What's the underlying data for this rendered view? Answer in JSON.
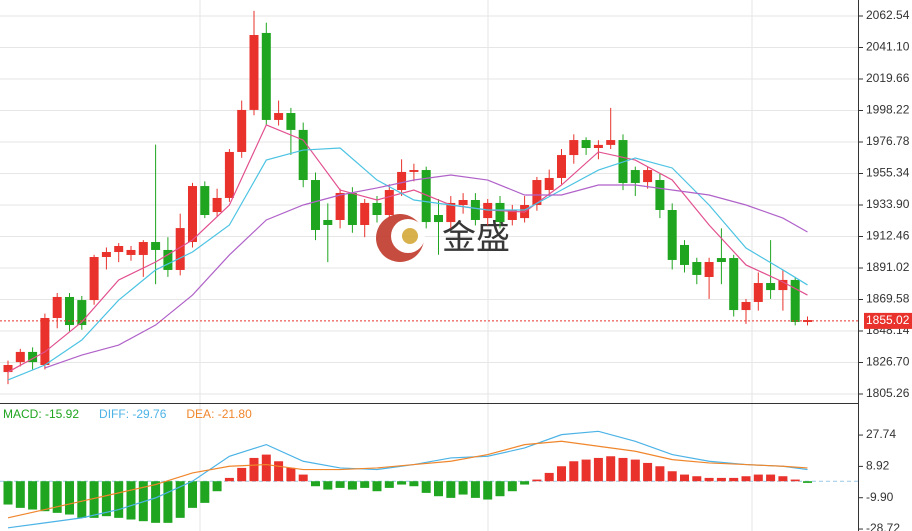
{
  "chart_data": [
    {
      "type": "candlestick",
      "ylim": [
        1799.14,
        2073.43
      ],
      "yticks": [
        2062.54,
        {
          "value": 2041.1,
          "label": "2041.10"
        },
        2019.66,
        1998.22,
        1976.78,
        1955.34,
        {
          "value": 1933.9,
          "label": "1933.90"
        },
        1912.46,
        1891.02,
        1869.58,
        1848.14,
        {
          "value": 1826.7,
          "label": "1826.70"
        },
        1805.26
      ],
      "grid": true,
      "up_color": "#e8322b",
      "down_color": "#1fa51f",
      "open": [
        1820.2,
        1827.0,
        1833.9,
        1825.0,
        1857.0,
        1871.3,
        1869.2,
        1869.2,
        1898.5,
        1901.9,
        1899.9,
        1899.9,
        1908.7,
        1903.3,
        1889.7,
        1908.7,
        1946.8,
        1929.1,
        1938.7,
        1970.0,
        1998.6,
        2051.0,
        1991.8,
        1996.5,
        1985.0,
        1950.9,
        1923.7,
        1923.7,
        1942.1,
        1920.3,
        1935.3,
        1927.1,
        1944.1,
        1956.4,
        1957.7,
        1927.1,
        1922.3,
        1933.9,
        1937.3,
        1925.0,
        1935.3,
        1923.7,
        1925.0,
        1933.9,
        1944.1,
        1952.3,
        1967.9,
        1978.1,
        1972.7,
        1974.8,
        1978.1,
        1957.7,
        1949.5,
        1950.9,
        1930.5,
        1906.7,
        1895.1,
        1884.9,
        1897.8,
        1897.8,
        1862.4,
        1867.9,
        1880.8,
        1876.0,
        1882.9,
        1854.3
      ],
      "high": [
        1828,
        1836,
        1837,
        1860,
        1874,
        1874,
        1872,
        1900,
        1905,
        1908,
        1906,
        1910,
        1975,
        1912,
        1928,
        1949,
        1950,
        1945,
        1972,
        2005,
        2066,
        2058,
        2005,
        2000,
        1990,
        1956,
        1935,
        1945,
        1946,
        1938,
        1940,
        1948,
        1965,
        1962,
        1960,
        1938,
        1940,
        1942,
        1942,
        1938,
        1940,
        1934,
        1940,
        1953,
        1958,
        1972,
        1982,
        1980,
        1978,
        2000,
        1982,
        1960,
        1960,
        1955,
        1935,
        1910,
        1898,
        1898,
        1918,
        1900,
        1870,
        1888,
        1910,
        1890,
        1885,
        1858
      ],
      "low": [
        1812,
        1824,
        1822,
        1822,
        1850,
        1848,
        1849,
        1866,
        1890,
        1895,
        1896,
        1885,
        1880,
        1885,
        1886,
        1905,
        1925,
        1926,
        1936,
        1966,
        1995,
        1988,
        1988,
        1968,
        1946,
        1910,
        1895,
        1918,
        1915,
        1912,
        1922,
        1924,
        1940,
        1950,
        1918,
        1900,
        1918,
        1928,
        1920,
        1920,
        1918,
        1920,
        1922,
        1930,
        1940,
        1948,
        1962,
        1968,
        1965,
        1972,
        1944,
        1940,
        1945,
        1925,
        1890,
        1888,
        1880,
        1870,
        1880,
        1858,
        1853,
        1862,
        1870,
        1862,
        1852,
        1852
      ],
      "close": [
        1825.0,
        1833.9,
        1827.0,
        1857.0,
        1871.3,
        1852.2,
        1852.2,
        1898.5,
        1901.9,
        1906.0,
        1903.3,
        1908.7,
        1903.3,
        1889.7,
        1918.2,
        1946.8,
        1927.1,
        1938.7,
        1970.0,
        1998.6,
        2049.6,
        1991.8,
        1996.5,
        1985.0,
        1950.9,
        1916.9,
        1920.3,
        1942.1,
        1920.3,
        1935.3,
        1927.1,
        1944.1,
        1956.4,
        1957.7,
        1922.3,
        1922.3,
        1935.3,
        1937.3,
        1923.7,
        1935.3,
        1922.3,
        1930.5,
        1933.9,
        1950.9,
        1952.3,
        1967.9,
        1978.1,
        1972.7,
        1974.8,
        1978.1,
        1948.9,
        1948.9,
        1957.7,
        1930.5,
        1896.5,
        1893.1,
        1886.3,
        1895.1,
        1895.1,
        1862.4,
        1867.9,
        1880.8,
        1876.0,
        1882.9,
        1854.3,
        1855.6
      ],
      "current_price": 1855.02,
      "current_price_color": "#e8322b",
      "lines": [
        {
          "color": "#e2508f",
          "x": [
            0,
            3,
            6,
            9,
            12,
            15,
            18,
            21,
            24,
            27,
            30,
            33,
            36,
            39,
            42,
            45,
            48,
            51,
            54,
            57,
            60,
            63,
            65
          ],
          "values": [
            1820.2,
            1833.9,
            1854.3,
            1882.9,
            1895.1,
            1910.1,
            1933.9,
            1988.4,
            1978.1,
            1944.1,
            1937.3,
            1944.1,
            1933.9,
            1930.5,
            1929.1,
            1947.5,
            1970.0,
            1964.5,
            1950.9,
            1920.3,
            1893.1,
            1881.5,
            1872.6
          ]
        },
        {
          "color": "#4cc3e3",
          "x": [
            0,
            3,
            6,
            9,
            12,
            15,
            18,
            21,
            24,
            27,
            30,
            33,
            36,
            39,
            42,
            45,
            48,
            51,
            54,
            57,
            60,
            63,
            65
          ],
          "values": [
            1814.8,
            1825.0,
            1842.0,
            1869.2,
            1889.7,
            1901.9,
            1920.3,
            1964.5,
            1971.3,
            1972.7,
            1950.9,
            1937.3,
            1933.9,
            1930.5,
            1930.5,
            1944.1,
            1957.7,
            1965.9,
            1959.1,
            1933.9,
            1904.6,
            1889.7,
            1879.5
          ]
        },
        {
          "color": "#b062c9",
          "x": [
            0,
            3,
            6,
            9,
            12,
            15,
            18,
            21,
            24,
            27,
            30,
            33,
            36,
            39,
            42,
            45,
            48,
            51,
            54,
            57,
            60,
            63,
            65
          ],
          "values": [
            null,
            1823.0,
            1831.8,
            1838.6,
            1852.2,
            1872.6,
            1899.9,
            1923.7,
            1933.9,
            1940.7,
            1945.5,
            1950.9,
            1954.3,
            1950.9,
            1940.7,
            1940.7,
            1947.5,
            1947.5,
            1944.1,
            1940.7,
            1933.9,
            1925.0,
            1915.5
          ]
        }
      ],
      "watermark": "金盛"
    },
    {
      "type": "macd",
      "ylim": [
        -29.9,
        45.8
      ],
      "yticks": [
        27.74,
        8.92,
        {
          "value": -9.9,
          "label": "-9.90"
        },
        -28.72
      ],
      "up_color": "#e8322b",
      "down_color": "#1fa51f",
      "legend": [
        {
          "label": "MACD: -15.92",
          "color": "#1fa51f"
        },
        {
          "label": "DIFF: -29.76",
          "color": "#4cb3e6"
        },
        {
          "label": "DEA: -21.80",
          "color": "#f0862c"
        }
      ],
      "histogram": [
        -14,
        -16,
        -17,
        -18,
        -19,
        -20,
        -22,
        -22,
        -21,
        -22,
        -23,
        -24,
        -25,
        -25,
        -22,
        -16,
        -13,
        -6,
        2,
        8,
        14,
        16,
        12,
        8,
        4,
        -3,
        -5,
        -4,
        -5,
        -4,
        -6,
        -4,
        -2,
        -3,
        -7,
        -9,
        -10,
        -8,
        -10,
        -11,
        -9,
        -6,
        -2,
        1,
        5,
        9,
        12,
        13,
        14,
        15,
        14,
        13,
        11,
        9,
        6,
        4,
        3,
        2,
        2,
        2,
        3,
        4,
        4,
        3,
        1,
        -1
      ],
      "lines": [
        {
          "color": "#4cb3e6",
          "x": [
            0,
            3,
            6,
            9,
            12,
            15,
            18,
            21,
            24,
            27,
            30,
            33,
            36,
            39,
            42,
            45,
            48,
            51,
            54,
            57,
            60,
            63,
            65
          ],
          "values": [
            -28,
            -25,
            -22,
            -17,
            -10,
            0,
            15,
            22,
            12,
            8,
            7,
            10,
            14,
            15,
            20,
            28,
            30,
            24,
            16,
            12,
            10,
            9,
            7
          ]
        },
        {
          "color": "#f0862c",
          "x": [
            0,
            3,
            6,
            9,
            12,
            15,
            18,
            21,
            24,
            27,
            30,
            33,
            36,
            39,
            42,
            45,
            48,
            51,
            54,
            57,
            60,
            63,
            65
          ],
          "values": [
            -22,
            -17,
            -12,
            -7,
            -2,
            5,
            9,
            10,
            7,
            7,
            8,
            10,
            12,
            16,
            22,
            24,
            21,
            18,
            13,
            11,
            10,
            9,
            8
          ]
        }
      ]
    }
  ]
}
